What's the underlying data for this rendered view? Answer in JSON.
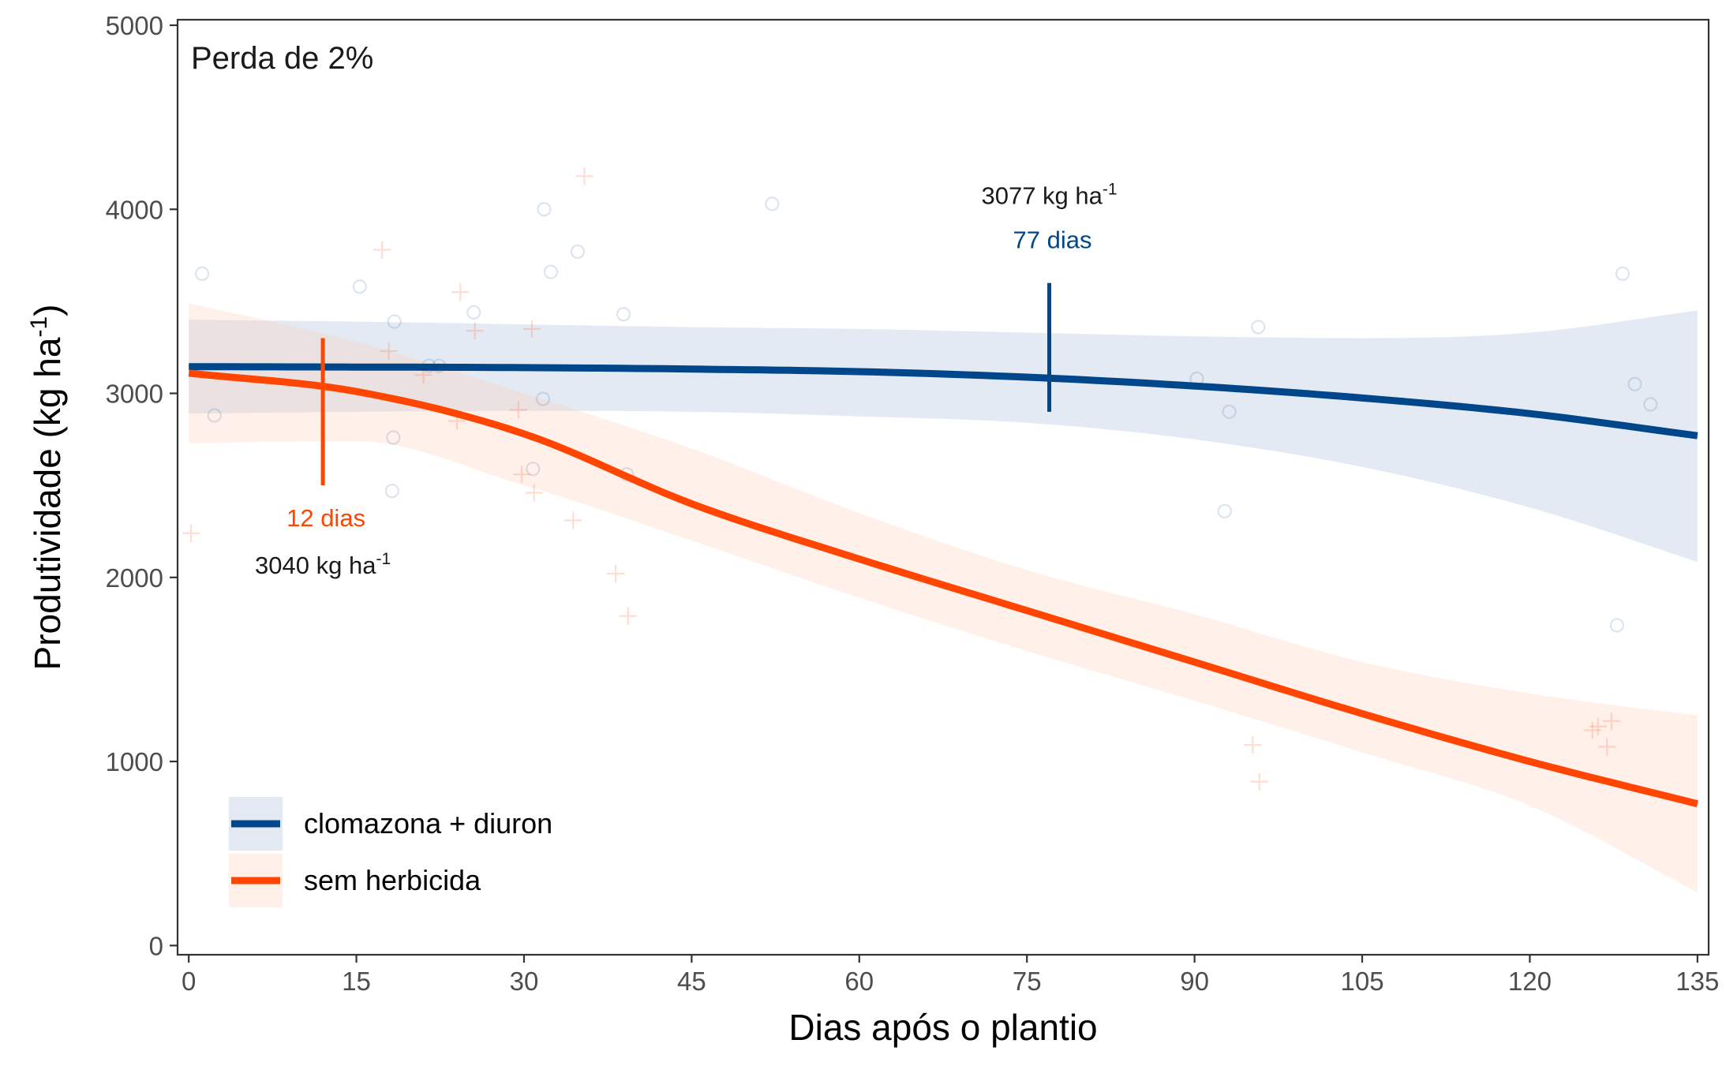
{
  "chart_data": {
    "type": "line",
    "title": "Perda de 2%",
    "xlabel": "Dias após o plantio",
    "ylabel": "Produtividade (kg ha",
    "ylabel_superscript": "-1",
    "ylabel_suffix": ")",
    "xlim": [
      -1,
      136
    ],
    "ylim": [
      -50,
      5030
    ],
    "x_ticks": [
      0,
      15,
      30,
      45,
      60,
      75,
      90,
      105,
      120,
      135
    ],
    "y_ticks": [
      0,
      1000,
      2000,
      3000,
      4000,
      5000
    ],
    "grid": false,
    "legend_position": "bottom-left",
    "series": [
      {
        "name": "clomazona + diuron",
        "color": "#00468B",
        "band_color": "#9DB3D3",
        "marker": "circle",
        "x": [
          0,
          15,
          30,
          45,
          60,
          75,
          90,
          105,
          120,
          135
        ],
        "y": [
          3145,
          3143,
          3140,
          3132,
          3118,
          3088,
          3040,
          2975,
          2890,
          2770
        ],
        "lower": [
          2890,
          2900,
          2905,
          2900,
          2875,
          2840,
          2750,
          2600,
          2380,
          2085
        ],
        "upper": [
          3400,
          3390,
          3375,
          3360,
          3350,
          3330,
          3310,
          3300,
          3330,
          3450
        ],
        "observations": [
          [
            1.2,
            3650
          ],
          [
            2.3,
            2880
          ],
          [
            15.3,
            3580
          ],
          [
            18.4,
            3390
          ],
          [
            18.3,
            2760
          ],
          [
            18.2,
            2470
          ],
          [
            21.5,
            3150
          ],
          [
            22.4,
            3150
          ],
          [
            25.5,
            3440
          ],
          [
            31.8,
            4000
          ],
          [
            32.4,
            3660
          ],
          [
            31.7,
            2970
          ],
          [
            30.8,
            2590
          ],
          [
            34.8,
            3770
          ],
          [
            38.9,
            3430
          ],
          [
            39.2,
            2560
          ],
          [
            52.2,
            4030
          ],
          [
            90.2,
            3080
          ],
          [
            92.7,
            2360
          ],
          [
            93.1,
            2900
          ],
          [
            95.7,
            3360
          ],
          [
            128.3,
            3650
          ],
          [
            129.4,
            3050
          ],
          [
            130.8,
            2940
          ],
          [
            127.8,
            1740
          ]
        ]
      },
      {
        "name": "sem herbicida",
        "color": "#FF4500",
        "band_color": "#FFC8B4",
        "marker": "plus",
        "x": [
          0,
          15,
          30,
          45,
          60,
          75,
          90,
          105,
          120,
          135
        ],
        "y": [
          3110,
          3010,
          2780,
          2400,
          2100,
          1820,
          1540,
          1260,
          1000,
          770
        ],
        "lower": [
          2730,
          2740,
          2500,
          2200,
          1890,
          1600,
          1330,
          1050,
          760,
          290
        ],
        "upper": [
          3490,
          3280,
          3000,
          2700,
          2350,
          2040,
          1800,
          1540,
          1370,
          1250
        ],
        "observations": [
          [
            0.2,
            2240
          ],
          [
            17.3,
            3780
          ],
          [
            17.9,
            3230
          ],
          [
            24.3,
            3550
          ],
          [
            25.6,
            3340
          ],
          [
            29.5,
            2910
          ],
          [
            29.8,
            2560
          ],
          [
            30.7,
            3350
          ],
          [
            30.9,
            2460
          ],
          [
            34.4,
            2310
          ],
          [
            35.4,
            4180
          ],
          [
            38.2,
            2020
          ],
          [
            39.3,
            1790
          ],
          [
            95.2,
            1090
          ],
          [
            95.8,
            890
          ],
          [
            125.6,
            1170
          ],
          [
            126.1,
            1190
          ],
          [
            126.9,
            1080
          ],
          [
            127.3,
            1220
          ],
          [
            21.0,
            3100
          ],
          [
            24.0,
            2850
          ]
        ]
      }
    ],
    "annotations": [
      {
        "series": "clomazona + diuron",
        "x": 77,
        "y": 3077,
        "y_from": 2900,
        "y_to": 3600,
        "days_text": "77 dias",
        "value_text": "3077 kg ha",
        "value_superscript": "-1",
        "placement": "above"
      },
      {
        "series": "sem herbicida",
        "x": 12,
        "y": 3040,
        "y_from": 2500,
        "y_to": 3300,
        "days_text": "12 dias",
        "value_text": "3040 kg ha",
        "value_superscript": "-1",
        "placement": "below"
      }
    ]
  }
}
